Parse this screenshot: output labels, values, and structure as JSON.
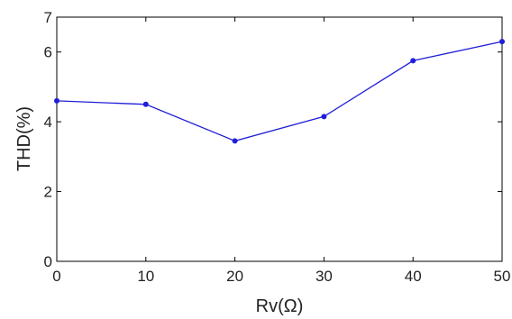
{
  "chart_data": {
    "type": "line",
    "title": "",
    "xlabel": "Rv(Ω)",
    "ylabel": "THD(%)",
    "xlim": [
      0,
      50
    ],
    "ylim": [
      0,
      7
    ],
    "xticks": [
      0,
      10,
      20,
      30,
      40,
      50
    ],
    "yticks": [
      0,
      2,
      4,
      6
    ],
    "grid": false,
    "series": [
      {
        "color": "#1f1fd8",
        "marker": "dot",
        "x": [
          0,
          10,
          20,
          30,
          40,
          50
        ],
        "y": [
          4.6,
          4.5,
          3.45,
          4.15,
          5.75,
          6.3
        ]
      }
    ]
  },
  "colors": {
    "line": "#1f1fd8",
    "axes": "#000000"
  }
}
